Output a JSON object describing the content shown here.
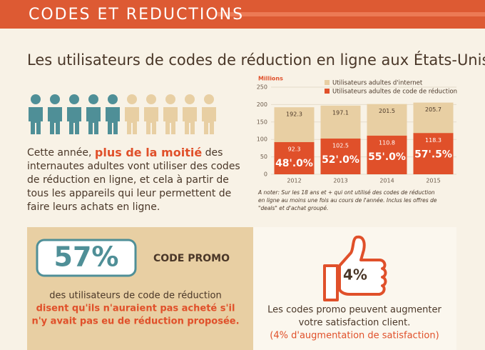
{
  "header": {
    "title": "CODES ET REDUCTIONS"
  },
  "subtitle": "Les utilisateurs de codes de réduction en ligne aux États-Unis",
  "intro": {
    "lines": [
      [
        "Cette année, ",
        "plus de la moitié",
        " des"
      ],
      [
        "internautes adultes vont utiliser des codes"
      ],
      [
        "de réduction en ligne, et cela à partir de"
      ],
      [
        "tous les appareils qui leur permettent de"
      ],
      [
        "faire leurs achats en ligne."
      ]
    ]
  },
  "chart_data": {
    "type": "bar",
    "ylabel": "Millions",
    "categories": [
      "2012",
      "2013",
      "2014",
      "2015"
    ],
    "series": [
      {
        "name": "Utilisateurs adultes d'internet",
        "color": "#e8cfa3",
        "values": [
          192.3,
          197.1,
          201.5,
          205.7
        ]
      },
      {
        "name": "Utilisateurs adultes de code de réduction",
        "color": "#e0502a",
        "values": [
          92.3,
          102.5,
          110.8,
          118.3
        ]
      }
    ],
    "share_labels": [
      "48'.0%",
      "52'.0%",
      "55'.0%",
      "57'.5%"
    ],
    "ylim": [
      0,
      250
    ],
    "yticks": [
      0,
      50,
      100,
      150,
      200,
      250
    ],
    "grid": true,
    "note": [
      "A noter: Sur les 18 ans et + qui ont utilisé des codes de réduction",
      "en ligne au moins une fois au cours de l'année. Inclus les offres de",
      "\"deals\"  et d'achat groupé."
    ]
  },
  "left_panel": {
    "stat": "57%",
    "label": "CODE PROMO",
    "lines": [
      "des utilisateurs de code de réduction",
      "disent qu'ils n'auraient pas acheté s'il",
      "n'y avait pas eu de réduction proposée."
    ]
  },
  "right_panel": {
    "stat": "4%",
    "lines": [
      "Les codes promo peuvent augmenter",
      "votre satisfaction client.",
      "(4% d'augmentation de satisfaction)"
    ]
  }
}
